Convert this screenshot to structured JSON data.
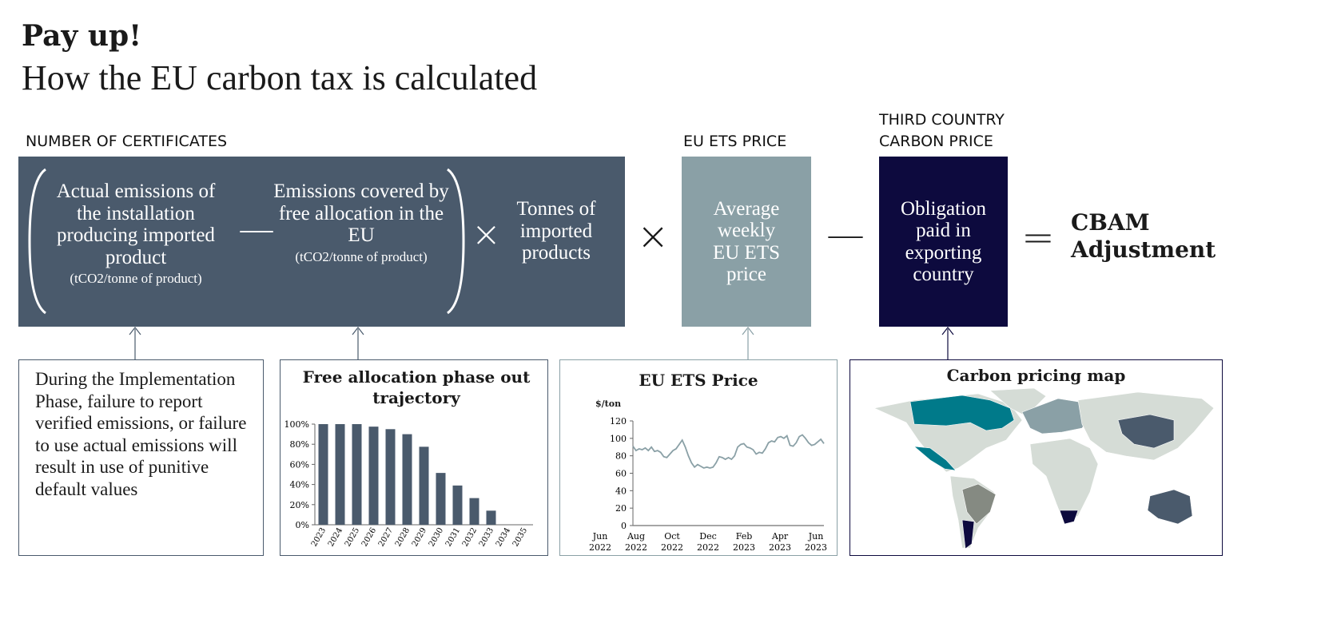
{
  "header": {
    "title": "Pay up!",
    "subtitle": "How the EU carbon tax is calculated"
  },
  "formula": {
    "certificates_label": "NUMBER OF CERTIFICATES",
    "actual_emissions": "Actual emissions of the installation producing imported product",
    "actual_unit": "(tCO2/tonne of product)",
    "minus1": "—",
    "free_allocation": "Emissions covered by free allocation in the EU",
    "free_unit": "(tCO2/tonne of product)",
    "times1": "×",
    "tonnes": "Tonnes of imported products",
    "times2": "×",
    "ets_label": "EU ETS PRICE",
    "ets_box": "Average weekly EU ETS price",
    "minus2": "—",
    "third_label": "THIRD COUNTRY CARBON PRICE",
    "third_box": "Obligation paid in exporting country",
    "equals": "=",
    "result": "CBAM Adjustment"
  },
  "colors": {
    "slate": "#4a5a6c",
    "ets": "#8aa0a6",
    "navy": "#0d0a3e",
    "line": "#8aa0a6"
  },
  "note": {
    "text": "During the Implementation Phase, failure to report verified emissions, or failure to use actual emissions will result in use of punitive default values"
  },
  "map": {
    "title": "Carbon pricing map"
  },
  "chart_data": [
    {
      "type": "bar",
      "title": "Free allocation phase out trajectory",
      "categories": [
        "2023",
        "2024",
        "2025",
        "2026",
        "2027",
        "2028",
        "2029",
        "2030",
        "2031",
        "2032",
        "2033",
        "2034",
        "2035"
      ],
      "values": [
        100,
        100,
        100,
        97.5,
        95,
        90,
        77.5,
        51.5,
        39,
        26.5,
        14,
        0,
        0
      ],
      "yticks": [
        "0%",
        "20%",
        "40%",
        "60%",
        "80%",
        "100%"
      ],
      "ylim": [
        0,
        100
      ],
      "color": "#4a5a6c"
    },
    {
      "type": "line",
      "title": "EU ETS Price",
      "ylabel": "$/ton",
      "ylim": [
        0,
        120
      ],
      "yticks": [
        "0",
        "20",
        "40",
        "60",
        "80",
        "100",
        "120"
      ],
      "xticks": [
        [
          "Jun",
          "2022"
        ],
        [
          "Aug",
          "2022"
        ],
        [
          "Oct",
          "2022"
        ],
        [
          "Dec",
          "2022"
        ],
        [
          "Feb",
          "2023"
        ],
        [
          "Apr",
          "2023"
        ],
        [
          "Jun",
          "2023"
        ]
      ],
      "x_range": [
        "Jun 2022",
        "Jun 2023"
      ],
      "values": [
        91,
        86,
        88,
        87,
        89,
        86,
        90,
        85,
        86,
        84,
        79,
        78,
        82,
        86,
        88,
        93,
        98,
        90,
        80,
        72,
        67,
        70,
        68,
        66,
        67,
        66,
        67,
        72,
        79,
        78,
        76,
        78,
        76,
        80,
        90,
        93,
        94,
        90,
        89,
        87,
        82,
        84,
        83,
        88,
        95,
        97,
        96,
        101,
        102,
        100,
        103,
        92,
        91,
        95,
        102,
        104,
        100,
        95,
        92,
        93,
        96,
        99,
        94
      ]
    }
  ]
}
